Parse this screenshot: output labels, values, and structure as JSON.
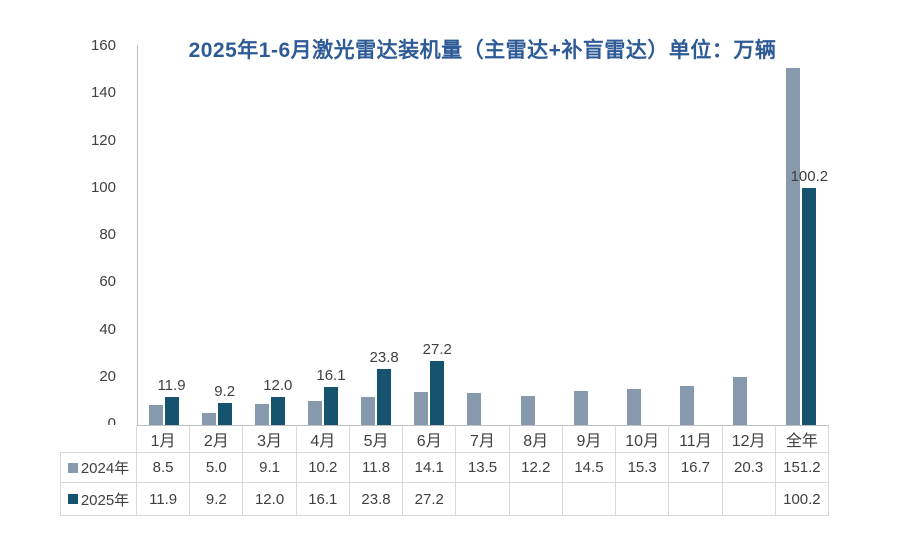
{
  "chart_data": {
    "type": "bar",
    "title": "2025年1-6月激光雷达装机量（主雷达+补盲雷达）单位：万辆",
    "title_color": "#2E5B95",
    "categories": [
      "1月",
      "2月",
      "3月",
      "4月",
      "5月",
      "6月",
      "7月",
      "8月",
      "9月",
      "10月",
      "11月",
      "12月",
      "全年"
    ],
    "series": [
      {
        "name": "2024年",
        "color": "#8799AC",
        "values": [
          8.5,
          5.0,
          9.1,
          10.2,
          11.8,
          14.1,
          13.5,
          12.2,
          14.5,
          15.3,
          16.7,
          20.3,
          151.2
        ]
      },
      {
        "name": "2025年",
        "color": "#16536F",
        "values": [
          11.9,
          9.2,
          12.0,
          16.1,
          23.8,
          27.2,
          null,
          null,
          null,
          null,
          null,
          null,
          100.2
        ]
      }
    ],
    "data_labels_on_series": "2025年",
    "data_label_values": [
      "11.9",
      "9.2",
      "12.0",
      "16.1",
      "23.8",
      "27.2",
      "100.2"
    ],
    "ylabel": "",
    "xlabel": "",
    "ylim": [
      0,
      160
    ],
    "ytick_step": 20,
    "yticks": [
      "0",
      "20",
      "40",
      "60",
      "80",
      "100",
      "120",
      "140",
      "160"
    ],
    "grid": false,
    "legend_position": "data-table-below-chart",
    "unit": "万辆"
  }
}
